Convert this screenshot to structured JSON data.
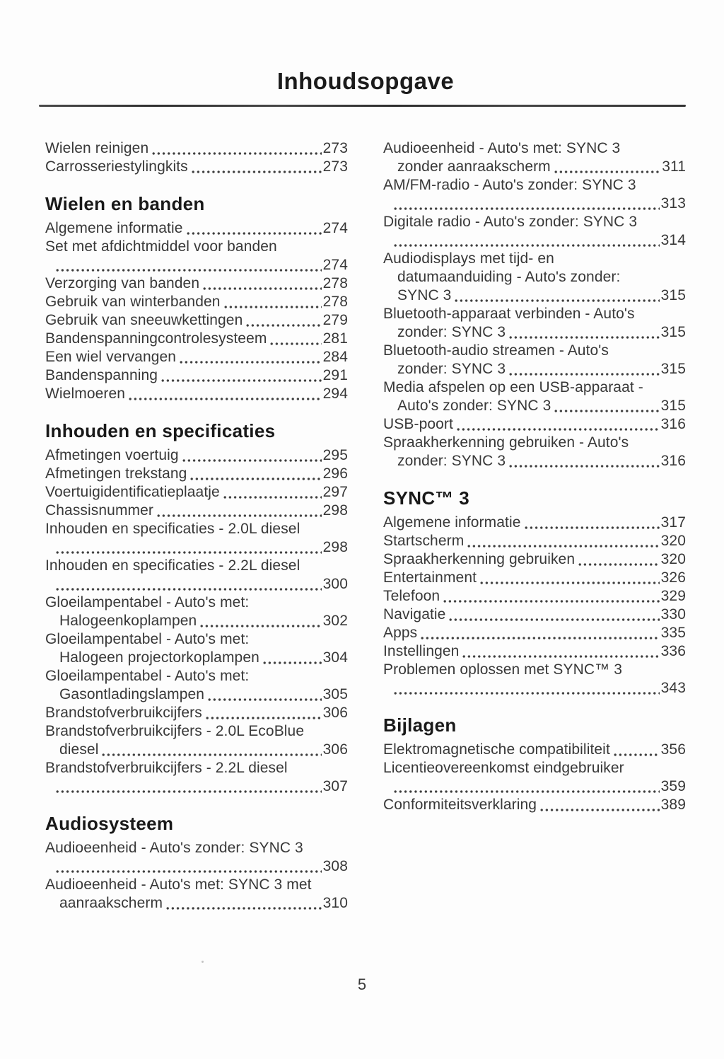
{
  "page": {
    "title": "Inhoudsopgave",
    "page_number": "5",
    "ink_color": "#383838",
    "heading_color": "#191919",
    "paper_color": "#fdfdfd"
  },
  "columns": [
    {
      "side": "left",
      "sections": [
        {
          "heading": null,
          "entries": [
            {
              "lines": [
                "Wielen reinigen"
              ],
              "page": "273"
            },
            {
              "lines": [
                "Carrosseriestylingkits"
              ],
              "page": "273"
            }
          ]
        },
        {
          "heading": "Wielen en banden",
          "entries": [
            {
              "lines": [
                "Algemene informatie"
              ],
              "page": "274"
            },
            {
              "lines": [
                "Set met afdichtmiddel voor banden"
              ],
              "page": "274",
              "page_own_line": true
            },
            {
              "lines": [
                "Verzorging van banden"
              ],
              "page": "278"
            },
            {
              "lines": [
                "Gebruik van winterbanden"
              ],
              "page": "278"
            },
            {
              "lines": [
                "Gebruik van sneeuwkettingen"
              ],
              "page": "279"
            },
            {
              "lines": [
                "Bandenspanningcontrolesysteem"
              ],
              "page": "281"
            },
            {
              "lines": [
                "Een wiel vervangen"
              ],
              "page": "284"
            },
            {
              "lines": [
                "Bandenspanning"
              ],
              "page": "291"
            },
            {
              "lines": [
                "Wielmoeren"
              ],
              "page": "294"
            }
          ]
        },
        {
          "heading": "Inhouden en specificaties",
          "entries": [
            {
              "lines": [
                "Afmetingen voertuig"
              ],
              "page": "295"
            },
            {
              "lines": [
                "Afmetingen trekstang"
              ],
              "page": "296"
            },
            {
              "lines": [
                "Voertuigidentificatieplaatje"
              ],
              "page": "297"
            },
            {
              "lines": [
                "Chassisnummer"
              ],
              "page": "298"
            },
            {
              "lines": [
                "Inhouden en specificaties - 2.0L diesel"
              ],
              "page": "298",
              "page_own_line": true
            },
            {
              "lines": [
                "Inhouden en specificaties - 2.2L diesel"
              ],
              "page": "300",
              "page_own_line": true
            },
            {
              "lines": [
                "Gloeilampentabel - Auto's met:",
                "Halogeenkoplampen"
              ],
              "page": "302"
            },
            {
              "lines": [
                "Gloeilampentabel - Auto's met:",
                "Halogeen projectorkoplampen"
              ],
              "page": "304"
            },
            {
              "lines": [
                "Gloeilampentabel - Auto's met:",
                "Gasontladingslampen"
              ],
              "page": "305"
            },
            {
              "lines": [
                "Brandstofverbruikcijfers"
              ],
              "page": "306"
            },
            {
              "lines": [
                "Brandstofverbruikcijfers - 2.0L EcoBlue",
                "diesel"
              ],
              "page": "306"
            },
            {
              "lines": [
                "Brandstofverbruikcijfers - 2.2L diesel"
              ],
              "page": "307",
              "page_own_line": true
            }
          ]
        },
        {
          "heading": "Audiosysteem",
          "entries": [
            {
              "lines": [
                "Audioeenheid - Auto's zonder: SYNC 3"
              ],
              "page": "308",
              "page_own_line": true
            },
            {
              "lines": [
                "Audioeenheid - Auto's met: SYNC 3 met",
                "aanraakscherm"
              ],
              "page": "310"
            }
          ]
        }
      ]
    },
    {
      "side": "right",
      "sections": [
        {
          "heading": null,
          "entries": [
            {
              "lines": [
                "Audioeenheid - Auto's met: SYNC 3",
                "zonder aanraakscherm"
              ],
              "page": "311"
            },
            {
              "lines": [
                "AM/FM-radio - Auto's zonder: SYNC 3"
              ],
              "page": "313",
              "page_own_line": true
            },
            {
              "lines": [
                "Digitale radio - Auto's zonder: SYNC 3"
              ],
              "page": "314",
              "page_own_line": true
            },
            {
              "lines": [
                "Audiodisplays met tijd- en",
                "datumaanduiding - Auto's zonder:",
                "SYNC 3"
              ],
              "page": "315"
            },
            {
              "lines": [
                "Bluetooth-apparaat verbinden - Auto's",
                "zonder: SYNC 3"
              ],
              "page": "315"
            },
            {
              "lines": [
                "Bluetooth-audio streamen - Auto's",
                "zonder: SYNC 3"
              ],
              "page": "315"
            },
            {
              "lines": [
                "Media afspelen op een USB-apparaat -",
                "Auto's zonder: SYNC 3"
              ],
              "page": "315"
            },
            {
              "lines": [
                "USB-poort"
              ],
              "page": "316"
            },
            {
              "lines": [
                "Spraakherkenning gebruiken - Auto's",
                "zonder: SYNC 3"
              ],
              "page": "316"
            }
          ]
        },
        {
          "heading": "SYNC™ 3",
          "entries": [
            {
              "lines": [
                "Algemene informatie"
              ],
              "page": "317"
            },
            {
              "lines": [
                "Startscherm"
              ],
              "page": "320"
            },
            {
              "lines": [
                "Spraakherkenning gebruiken"
              ],
              "page": "320"
            },
            {
              "lines": [
                "Entertainment"
              ],
              "page": "326"
            },
            {
              "lines": [
                "Telefoon"
              ],
              "page": "329"
            },
            {
              "lines": [
                "Navigatie"
              ],
              "page": "330"
            },
            {
              "lines": [
                "Apps"
              ],
              "page": "335"
            },
            {
              "lines": [
                "Instellingen"
              ],
              "page": "336"
            },
            {
              "lines": [
                "Problemen oplossen met SYNC™ 3"
              ],
              "page": "343",
              "page_own_line": true
            }
          ]
        },
        {
          "heading": "Bijlagen",
          "entries": [
            {
              "lines": [
                "Elektromagnetische compatibiliteit"
              ],
              "page": "356"
            },
            {
              "lines": [
                "Licentieovereenkomst eindgebruiker"
              ],
              "page": "359",
              "page_own_line": true
            },
            {
              "lines": [
                "Conformiteitsverklaring"
              ],
              "page": "389"
            }
          ]
        }
      ]
    }
  ]
}
